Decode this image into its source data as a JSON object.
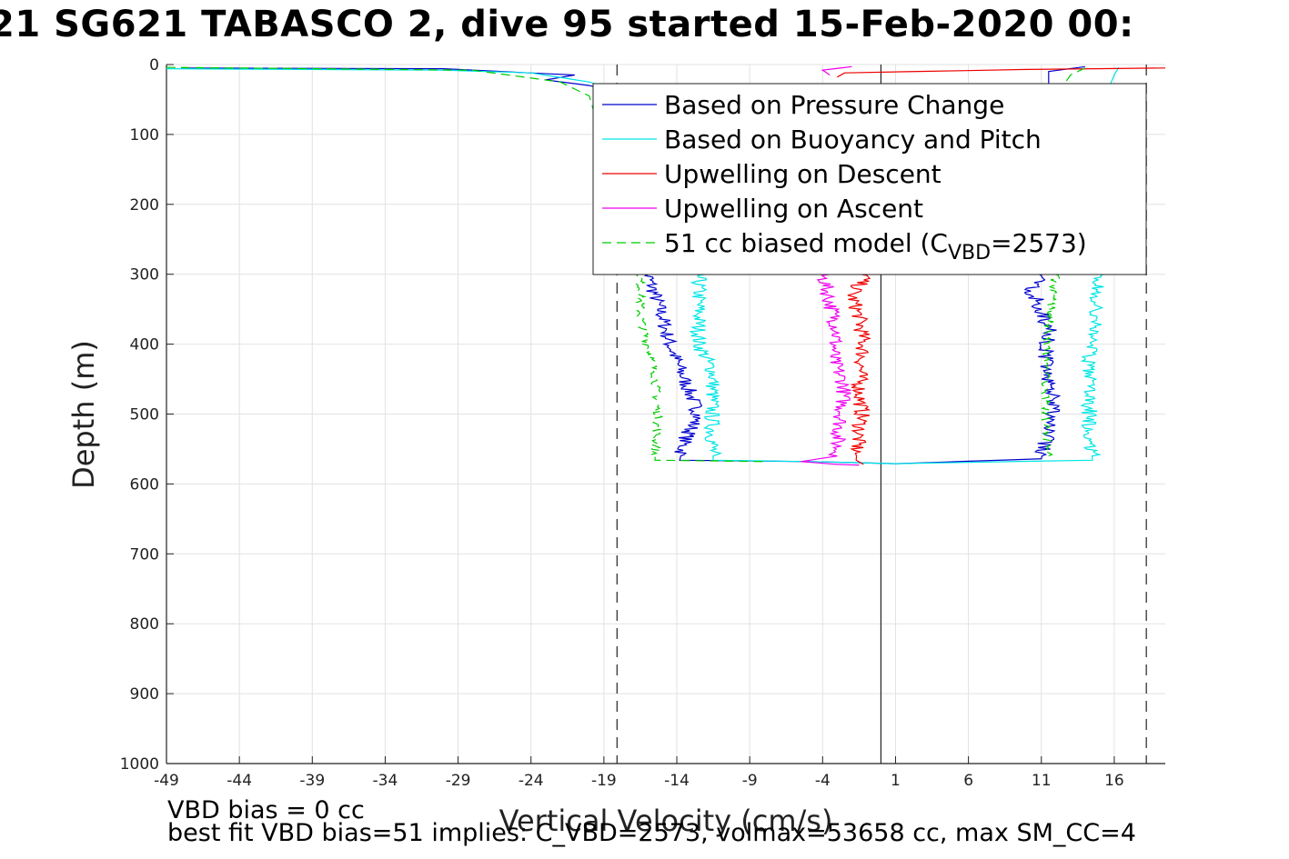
{
  "chart_data": {
    "type": "line",
    "title": "SG621 TABASCO 2, dive 95 started 15-Feb-2020 00:",
    "title_left_fragment": "21",
    "xlabel": "Vertical Velocity (cm/s)",
    "ylabel": "Depth (m)",
    "xlim": [
      -49,
      19.5
    ],
    "ylim": [
      1000,
      0
    ],
    "y_reversed": true,
    "grid": true,
    "legend_placement": "top-right",
    "x_ticks": [
      "-49",
      "-44",
      "-39",
      "-34",
      "-29",
      "-24",
      "-19",
      "-14",
      "-9",
      "-4",
      "1",
      "6",
      "11",
      "16"
    ],
    "y_ticks": [
      "0",
      "100",
      "200",
      "300",
      "400",
      "500",
      "600",
      "700",
      "800",
      "900",
      "1000"
    ],
    "reference_lines": {
      "dashed_x": [
        -18.1,
        18.2
      ],
      "solid_x": 0.0
    },
    "series": [
      {
        "name": "Based on Pressure Change",
        "color": "#0000cc",
        "style": "solid",
        "descent": [
          [
            -48,
            5
          ],
          [
            -30,
            6
          ],
          [
            -21,
            15
          ],
          [
            -23,
            22
          ],
          [
            -20,
            30
          ],
          [
            -17,
            45
          ],
          [
            -16,
            300
          ],
          [
            -15,
            360
          ],
          [
            -14.5,
            400
          ],
          [
            -13.5,
            450
          ],
          [
            -12.5,
            500
          ],
          [
            -13.5,
            540
          ],
          [
            -13.8,
            566
          ],
          [
            -5,
            568
          ],
          [
            1,
            571
          ]
        ],
        "ascent": [
          [
            1,
            571
          ],
          [
            11,
            564
          ],
          [
            11.5,
            520
          ],
          [
            11.8,
            480
          ],
          [
            11.3,
            420
          ],
          [
            11.5,
            380
          ],
          [
            10.3,
            320
          ],
          [
            11,
            300
          ],
          [
            11.5,
            35
          ],
          [
            11.5,
            10
          ],
          [
            14,
            3
          ]
        ]
      },
      {
        "name": "Based on Buoyancy and Pitch",
        "color": "#00e5e5",
        "style": "solid",
        "descent": [
          [
            -49,
            6
          ],
          [
            -30,
            8
          ],
          [
            -24,
            12
          ],
          [
            -20,
            25
          ],
          [
            -17,
            45
          ],
          [
            -12.5,
            300
          ],
          [
            -12.5,
            400
          ],
          [
            -11.5,
            440
          ],
          [
            -11.6,
            500
          ],
          [
            -11.5,
            566
          ],
          [
            -5,
            568
          ],
          [
            1,
            571
          ]
        ],
        "ascent": [
          [
            1,
            571
          ],
          [
            14.5,
            566
          ],
          [
            14.3,
            500
          ],
          [
            14.2,
            440
          ],
          [
            14.6,
            380
          ],
          [
            15,
            300
          ],
          [
            15.5,
            40
          ],
          [
            16,
            15
          ],
          [
            16.3,
            4
          ]
        ]
      },
      {
        "name": "Upwelling on Descent",
        "color": "#ee0000",
        "style": "solid",
        "descent": [
          [
            -1,
            300
          ],
          [
            -2,
            330
          ],
          [
            -1.5,
            360
          ],
          [
            -1.2,
            400
          ],
          [
            -1.5,
            460
          ],
          [
            -1.3,
            500
          ],
          [
            -1.6,
            540
          ],
          [
            -1.7,
            566
          ],
          [
            -1.2,
            572
          ]
        ],
        "ascent": [
          [
            -3,
            18
          ],
          [
            -2.5,
            12
          ],
          [
            10,
            7
          ],
          [
            19.5,
            5
          ]
        ]
      },
      {
        "name": "Upwelling on Ascent",
        "color": "#ee00ee",
        "style": "solid",
        "descent": [
          [
            -4,
            300
          ],
          [
            -3.5,
            340
          ],
          [
            -3,
            380
          ],
          [
            -3.3,
            420
          ],
          [
            -2.5,
            460
          ],
          [
            -2.7,
            500
          ],
          [
            -3,
            540
          ],
          [
            -3,
            560
          ],
          [
            -5.5,
            568
          ],
          [
            -3,
            572
          ],
          [
            -1.5,
            573
          ]
        ],
        "ascent": [
          [
            -3.5,
            15
          ],
          [
            -4,
            8
          ],
          [
            -2,
            3
          ]
        ]
      },
      {
        "name": "51 cc biased model (C_VBD=2573)",
        "name_base": "51 cc biased model (C",
        "name_sub": "VBD",
        "name_tail": "=2573)",
        "color": "#00cc00",
        "style": "dashed",
        "descent": [
          [
            -49,
            4
          ],
          [
            -28,
            8
          ],
          [
            -22,
            25
          ],
          [
            -20,
            45
          ],
          [
            -16.5,
            300
          ],
          [
            -16.5,
            360
          ],
          [
            -16,
            400
          ],
          [
            -15.5,
            440
          ],
          [
            -15.3,
            500
          ],
          [
            -15.5,
            566
          ],
          [
            -8,
            568
          ]
        ],
        "ascent": [
          [
            11.5,
            560
          ],
          [
            11.3,
            500
          ],
          [
            11.3,
            420
          ],
          [
            11.7,
            340
          ],
          [
            12,
            300
          ],
          [
            12.5,
            30
          ],
          [
            13,
            15
          ],
          [
            14,
            5
          ]
        ]
      }
    ]
  },
  "footer": {
    "line1": "VBD bias = 0 cc",
    "line2": "best fit VBD bias=51 implies: C_VBD=2573, volmax=53658 cc, max SM_CC=4"
  }
}
